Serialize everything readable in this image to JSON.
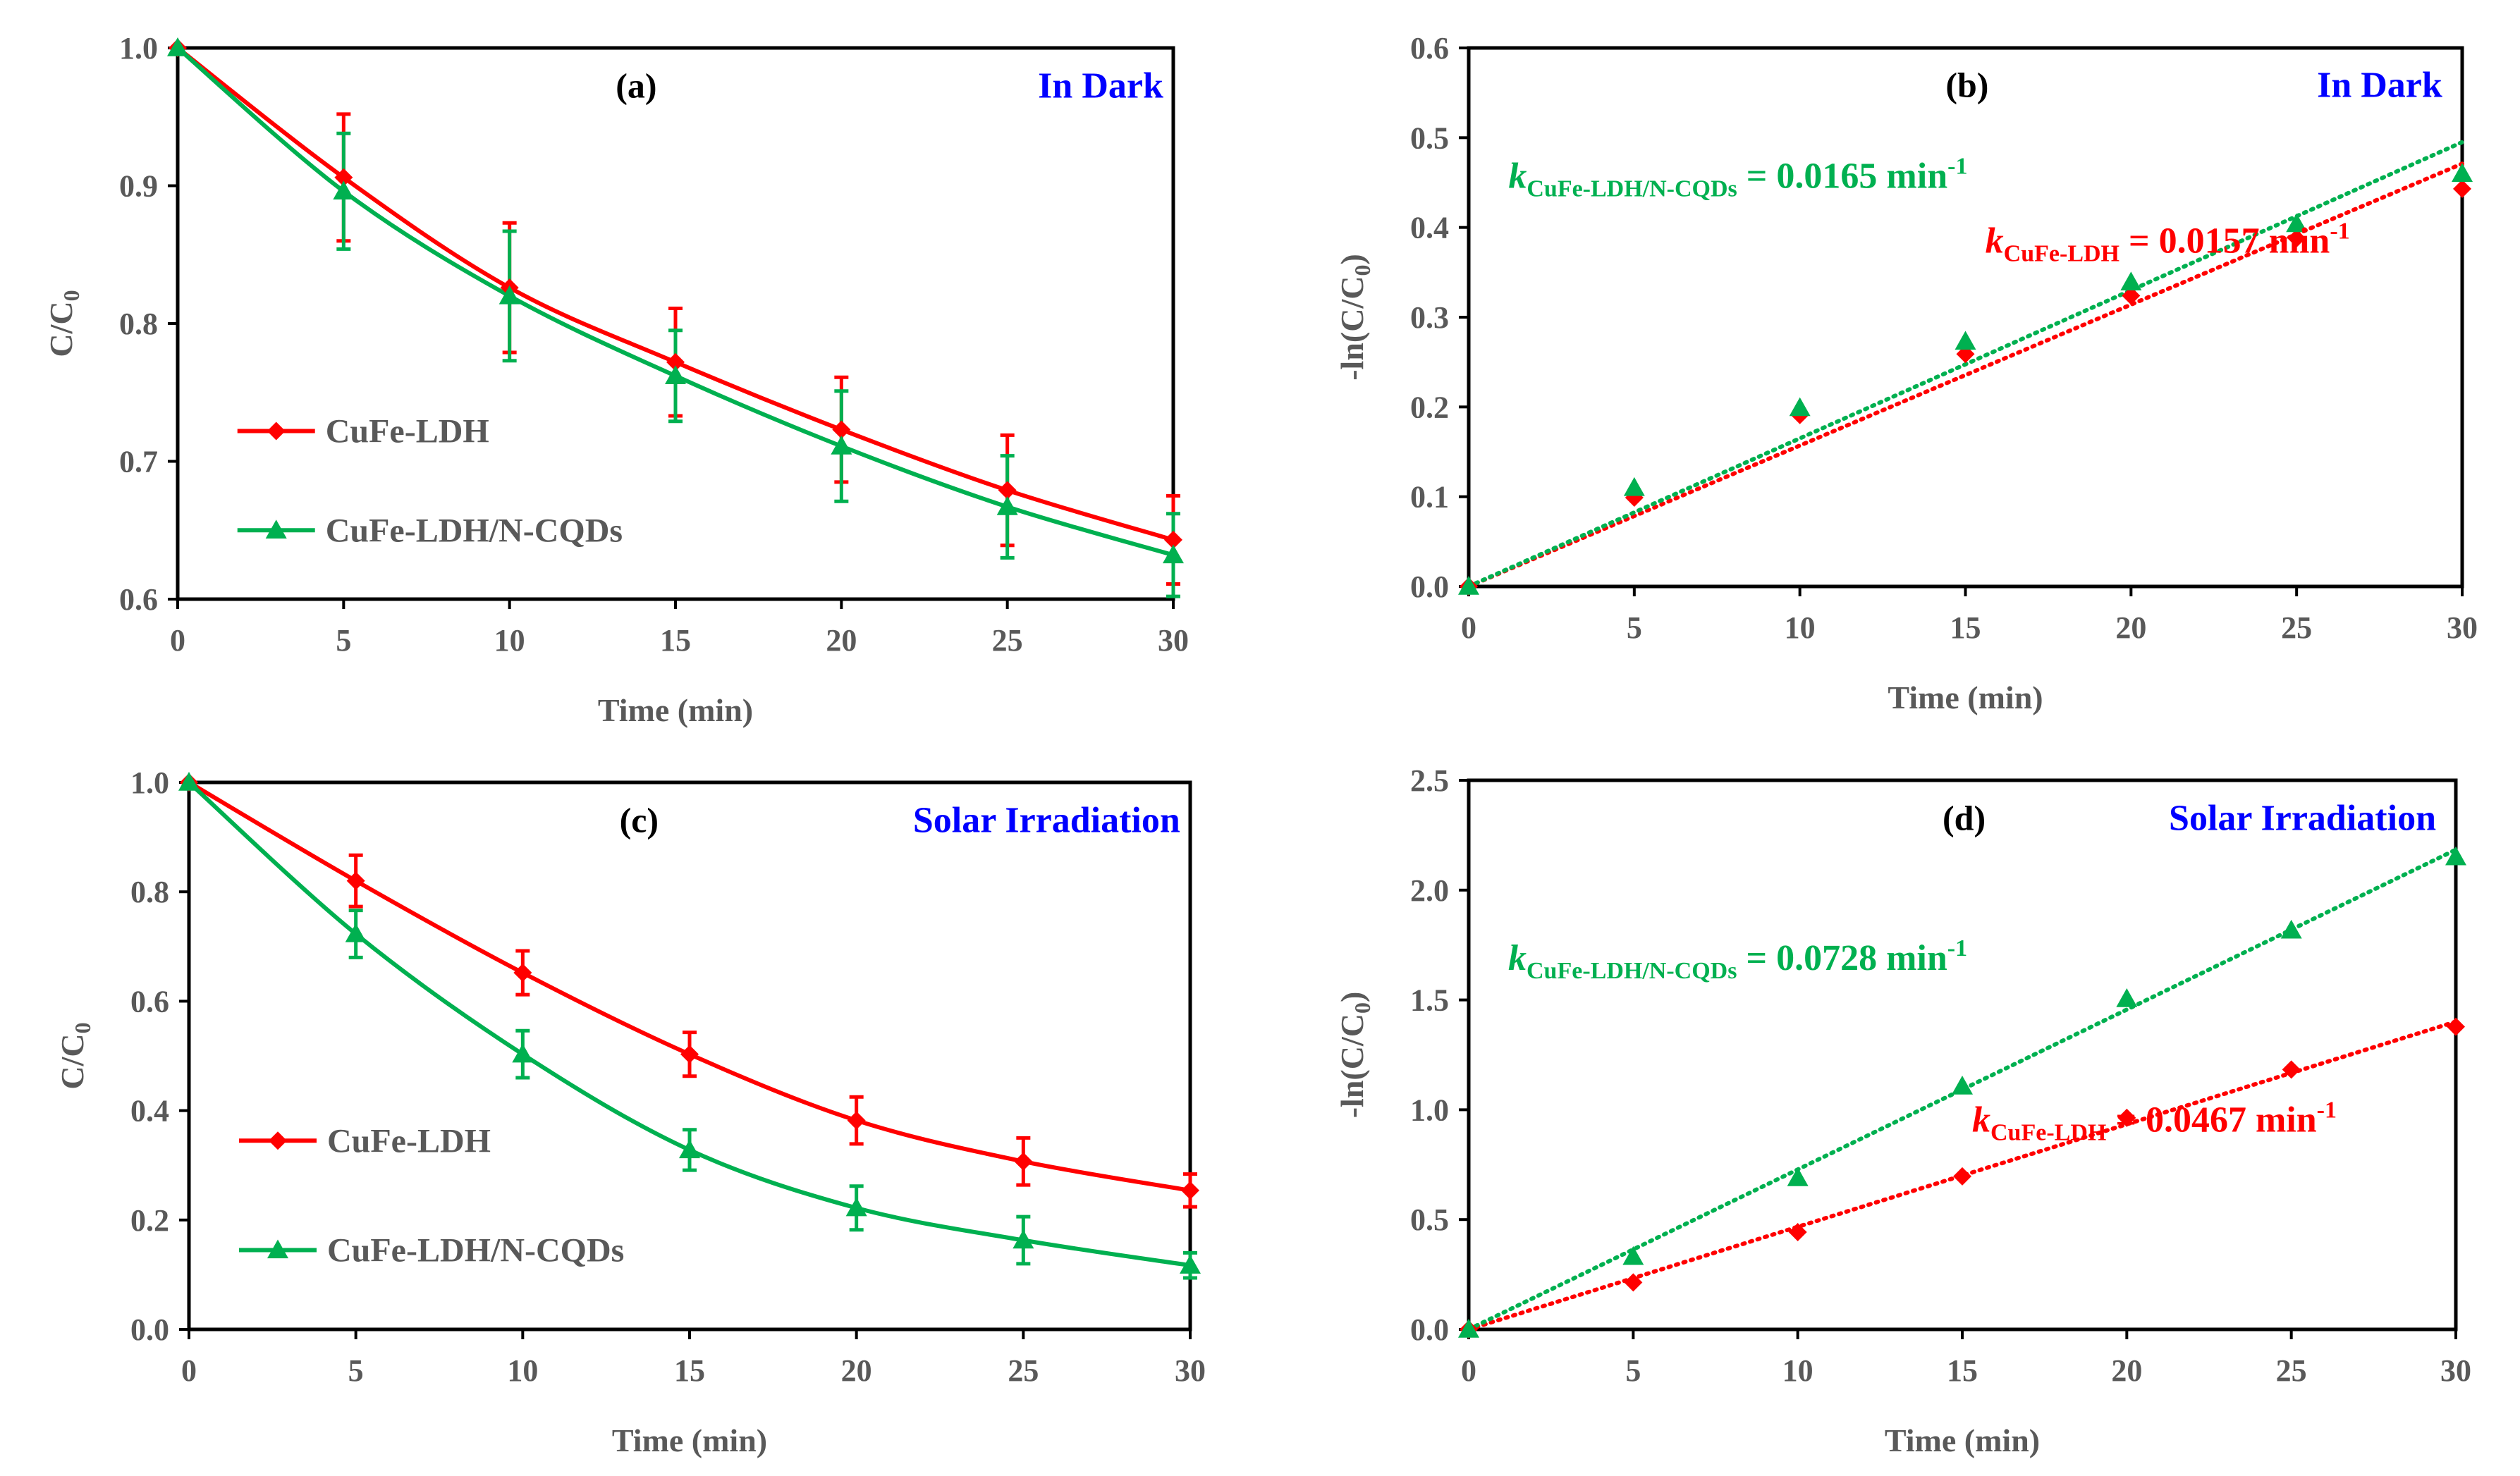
{
  "colors": {
    "red": "#ff0000",
    "green": "#00b050",
    "blue": "#0000ff",
    "axis": "#000000",
    "tick_text": "#595959"
  },
  "series_labels": {
    "ldh": "CuFe-LDH",
    "cqd": "CuFe-LDH/N-CQDs"
  },
  "chart_data": [
    {
      "id": "a",
      "type": "line",
      "panel_label": "(a)",
      "condition": "In Dark",
      "xlabel": "Time  (min)",
      "ylabel": "C/C",
      "xlim": [
        0,
        30
      ],
      "ylim": [
        0.6,
        1.0
      ],
      "xticks": [
        0,
        5,
        10,
        15,
        20,
        25,
        30
      ],
      "yticks": [
        0.6,
        0.7,
        0.8,
        0.9,
        1.0
      ],
      "ytick_decimals": 1,
      "x": [
        0,
        5,
        10,
        15,
        20,
        25,
        30
      ],
      "legend": true,
      "series": [
        {
          "key": "ldh",
          "name": "CuFe-LDH",
          "marker": "diamond",
          "line": "smooth",
          "values": [
            1.0,
            0.906,
            0.826,
            0.772,
            0.723,
            0.679,
            0.643
          ],
          "errors": [
            0,
            0.046,
            0.047,
            0.039,
            0.038,
            0.04,
            0.032
          ]
        },
        {
          "key": "cqd",
          "name": "CuFe-LDH/N-CQDs",
          "marker": "triangle",
          "line": "smooth",
          "values": [
            1.0,
            0.896,
            0.82,
            0.762,
            0.711,
            0.667,
            0.632
          ],
          "errors": [
            0,
            0.042,
            0.047,
            0.033,
            0.04,
            0.037,
            0.03
          ]
        }
      ]
    },
    {
      "id": "b",
      "type": "scatter",
      "panel_label": "(b)",
      "condition": "In Dark",
      "xlabel": "Time  (min)",
      "ylabel": "-ln(C/C",
      "xlim": [
        0,
        30
      ],
      "ylim": [
        0,
        0.6
      ],
      "xticks": [
        0,
        5,
        10,
        15,
        20,
        25,
        30
      ],
      "yticks": [
        0.0,
        0.1,
        0.2,
        0.3,
        0.4,
        0.5,
        0.6
      ],
      "ytick_decimals": 1,
      "x": [
        0,
        5,
        10,
        15,
        20,
        25,
        30
      ],
      "legend": false,
      "series": [
        {
          "key": "ldh",
          "name": "CuFe-LDH",
          "marker": "diamond",
          "line": "fit",
          "slope": 0.0157,
          "values": [
            0,
            0.099,
            0.191,
            0.259,
            0.324,
            0.388,
            0.443
          ]
        },
        {
          "key": "cqd",
          "name": "CuFe-LDH/N-CQDs",
          "marker": "triangle",
          "line": "fit",
          "slope": 0.0165,
          "values": [
            0,
            0.11,
            0.199,
            0.273,
            0.339,
            0.404,
            0.46
          ]
        }
      ],
      "annotations": [
        {
          "series": "cqd",
          "k": "k",
          "sub": "CuFe-LDH/N-CQDs",
          "text": " = 0.0165 min",
          "sup": "-1"
        },
        {
          "series": "ldh",
          "k": "k",
          "sub": "CuFe-LDH",
          "text": " = 0.0157 min",
          "sup": "-1"
        }
      ]
    },
    {
      "id": "c",
      "type": "line",
      "panel_label": "(c)",
      "condition": "Solar Irradiation",
      "xlabel": "Time  (min)",
      "ylabel": "C/C",
      "xlim": [
        0,
        30
      ],
      "ylim": [
        0,
        1.0
      ],
      "xticks": [
        0,
        5,
        10,
        15,
        20,
        25,
        30
      ],
      "yticks": [
        0.0,
        0.2,
        0.4,
        0.6,
        0.8,
        1.0
      ],
      "ytick_decimals": 1,
      "x": [
        0,
        5,
        10,
        15,
        20,
        25,
        30
      ],
      "legend": true,
      "series": [
        {
          "key": "ldh",
          "name": "CuFe-LDH",
          "marker": "diamond",
          "line": "smooth",
          "values": [
            1.0,
            0.82,
            0.652,
            0.503,
            0.382,
            0.307,
            0.254
          ],
          "errors": [
            0,
            0.047,
            0.04,
            0.04,
            0.043,
            0.043,
            0.03
          ]
        },
        {
          "key": "cqd",
          "name": "CuFe-LDH/N-CQDs",
          "marker": "triangle",
          "line": "smooth",
          "values": [
            1.0,
            0.723,
            0.503,
            0.328,
            0.222,
            0.163,
            0.117
          ],
          "errors": [
            0,
            0.043,
            0.043,
            0.037,
            0.04,
            0.043,
            0.023
          ]
        }
      ]
    },
    {
      "id": "d",
      "type": "scatter",
      "panel_label": "(d)",
      "condition": "Solar Irradiation",
      "xlabel": "Time  (min)",
      "ylabel": "-ln(C/C",
      "xlim": [
        0,
        30
      ],
      "ylim": [
        0,
        2.5
      ],
      "xticks": [
        0,
        5,
        10,
        15,
        20,
        25,
        30
      ],
      "yticks": [
        0.0,
        0.5,
        1.0,
        1.5,
        2.0,
        2.5
      ],
      "ytick_decimals": 1,
      "x": [
        0,
        5,
        10,
        15,
        20,
        25,
        30
      ],
      "legend": false,
      "series": [
        {
          "key": "ldh",
          "name": "CuFe-LDH",
          "marker": "diamond",
          "line": "fit",
          "slope": 0.0467,
          "values": [
            0,
            0.214,
            0.443,
            0.697,
            0.963,
            1.183,
            1.378
          ]
        },
        {
          "key": "cqd",
          "name": "CuFe-LDH/N-CQDs",
          "marker": "triangle",
          "line": "fit",
          "slope": 0.0728,
          "values": [
            0,
            0.331,
            0.69,
            1.107,
            1.505,
            1.817,
            2.151
          ]
        }
      ],
      "annotations": [
        {
          "series": "cqd",
          "k": "k",
          "sub": "CuFe-LDH/N-CQDs",
          "text": " = 0.0728 min",
          "sup": "-1"
        },
        {
          "series": "ldh",
          "k": "k",
          "sub": "CuFe-LDH",
          "text": " = 0.0467 min",
          "sup": "-1"
        }
      ]
    }
  ]
}
